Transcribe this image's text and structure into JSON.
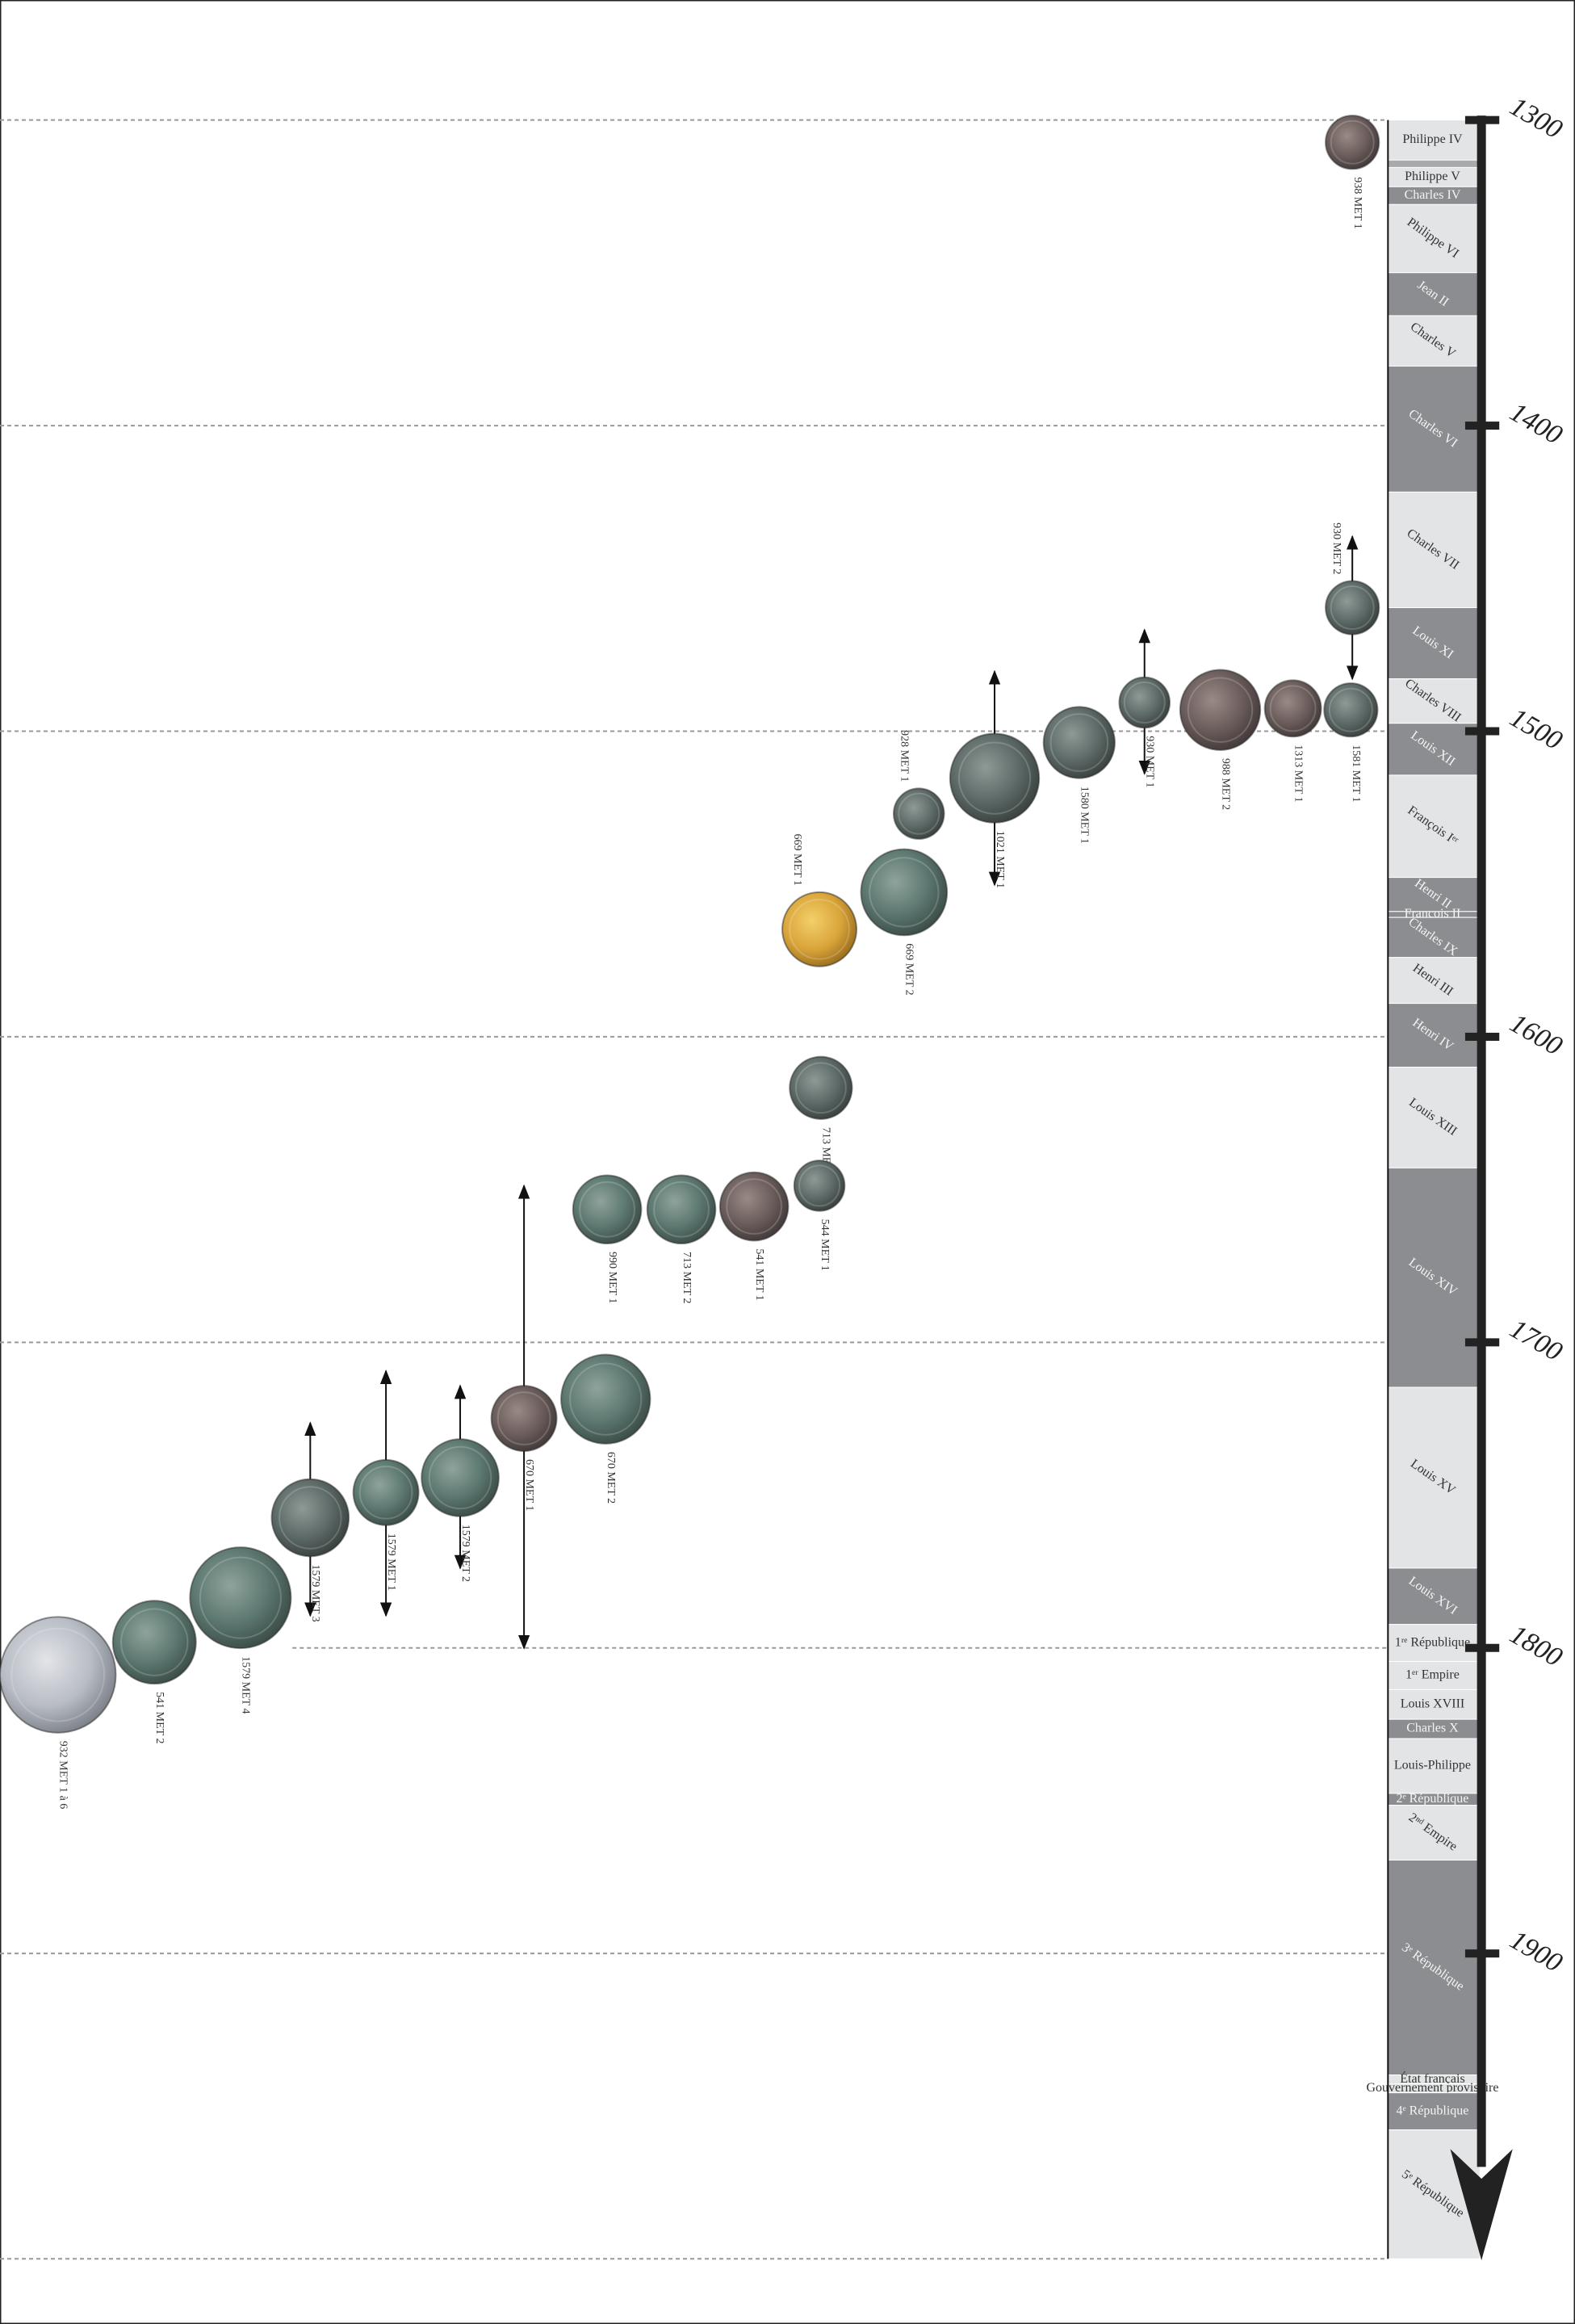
{
  "timeline": {
    "years": [
      1300,
      1400,
      1500,
      1600,
      1700,
      1800,
      1900
    ],
    "reigns": [
      "Philippe IV",
      "Philippe V",
      "Charles IV",
      "Philippe VI",
      "Jean II",
      "Charles V",
      "Charles VI",
      "Charles VII",
      "Louis XI",
      "Charles VIII",
      "Louis XII",
      "François Iᵉʳ",
      "Henri II",
      "François II",
      "Charles IX",
      "Henri III",
      "Henri IV",
      "Louis XIII",
      "Louis XIV",
      "Louis XV",
      "Louis XVI",
      "1ʳᵉ République",
      "1ᵉʳ Empire",
      "Louis XVIII",
      "Charles X",
      "Louis-Philippe",
      "2ᵉ République",
      "2ⁿᵈ Empire",
      "3ᵉ République",
      "État français",
      "Gouvernement provisoire",
      "4ᵉ République",
      "5ᵉ République"
    ],
    "coins": [
      "938 MET 1",
      "930 MET 2",
      "1581 MET 1",
      "1313 MET 1",
      "988 MET 2",
      "930 MET 1",
      "1580 MET 1",
      "1021 MET 1",
      "928 MET 1",
      "669 MET 2",
      "669 MET 1",
      "713 MET 1",
      "544 MET 1",
      "541 MET 1",
      "713 MET 2",
      "990 MET 1",
      "670 MET 2",
      "670 MET 1",
      "1579 MET 2",
      "1579 MET 1",
      "1579 MET 3",
      "1579 MET 4",
      "541 MET 2",
      "932 MET 1 à 6"
    ]
  }
}
